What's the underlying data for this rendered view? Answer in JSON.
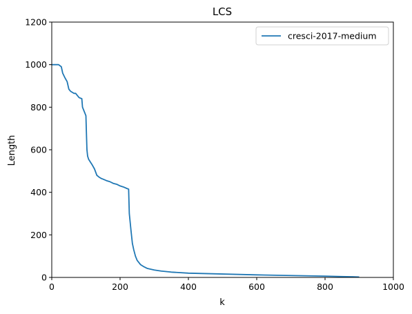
{
  "chart_data": {
    "type": "line",
    "title": "LCS",
    "xlabel": "k",
    "ylabel": "Length",
    "xlim": [
      0,
      1000
    ],
    "ylim": [
      0,
      1200
    ],
    "xticks": [
      0,
      200,
      400,
      600,
      800,
      1000
    ],
    "yticks": [
      0,
      200,
      400,
      600,
      800,
      1000,
      1200
    ],
    "grid": false,
    "legend_position": "top-right",
    "series": [
      {
        "name": "cresci-2017-medium",
        "color": "#1f77b4",
        "x": [
          0,
          20,
          28,
          32,
          38,
          45,
          50,
          55,
          60,
          65,
          70,
          75,
          80,
          88,
          90,
          95,
          100,
          102,
          103,
          105,
          108,
          112,
          118,
          125,
          132,
          138,
          140,
          145,
          150,
          160,
          170,
          180,
          190,
          200,
          210,
          220,
          225,
          227,
          232,
          236,
          240,
          245,
          250,
          260,
          270,
          280,
          300,
          320,
          350,
          400,
          500,
          600,
          700,
          800,
          850,
          880,
          900
        ],
        "y": [
          1000,
          1000,
          990,
          960,
          940,
          920,
          885,
          875,
          870,
          865,
          865,
          855,
          845,
          840,
          800,
          780,
          760,
          650,
          600,
          570,
          555,
          545,
          530,
          510,
          480,
          472,
          470,
          465,
          462,
          455,
          450,
          442,
          438,
          430,
          425,
          418,
          415,
          300,
          220,
          160,
          130,
          100,
          80,
          60,
          50,
          42,
          35,
          30,
          25,
          20,
          16,
          12,
          9,
          6,
          4,
          3,
          2
        ]
      }
    ]
  }
}
